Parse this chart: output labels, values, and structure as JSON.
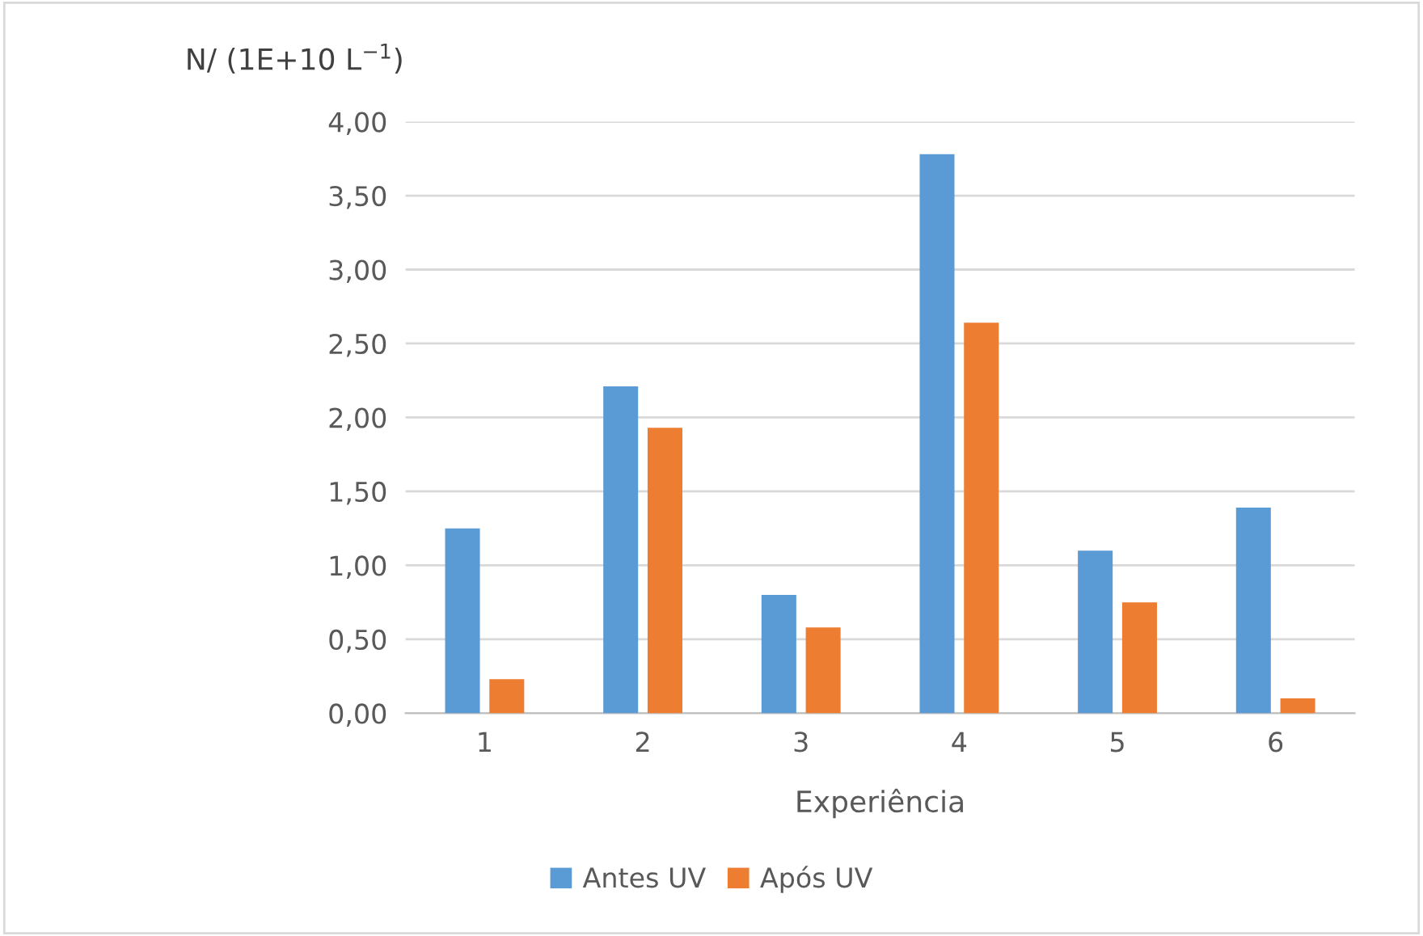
{
  "chart_data": {
    "type": "bar",
    "ylabel": "N/ (1E+10 L$^{−1}$)",
    "xlabel": "Experiência",
    "categories": [
      "1",
      "2",
      "3",
      "4",
      "5",
      "6"
    ],
    "series": [
      {
        "name": "Antes UV",
        "color": "#5b9bd5",
        "values": [
          1.25,
          2.21,
          0.8,
          3.78,
          1.1,
          1.39
        ]
      },
      {
        "name": "Após UV",
        "color": "#ed7d31",
        "values": [
          0.23,
          1.93,
          0.58,
          2.64,
          0.75,
          0.1
        ]
      }
    ],
    "ylim": [
      0,
      4
    ],
    "yticks": [
      {
        "value": 0,
        "label": "0,00"
      },
      {
        "value": 0.5,
        "label": "0,50"
      },
      {
        "value": 1,
        "label": "1,00"
      },
      {
        "value": 1.5,
        "label": "1,50"
      },
      {
        "value": 2,
        "label": "2,00"
      },
      {
        "value": 2.5,
        "label": "2,50"
      },
      {
        "value": 3,
        "label": "3,00"
      },
      {
        "value": 3.5,
        "label": "3,50"
      },
      {
        "value": 4,
        "label": "4,00"
      }
    ],
    "grid": "y",
    "legend": "bottom"
  }
}
